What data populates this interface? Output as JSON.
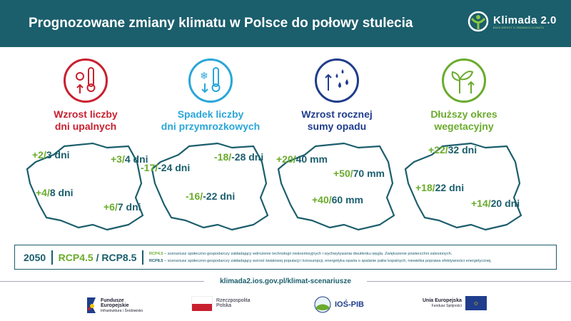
{
  "header": {
    "title": "Prognozowane zmiany klimatu w Polsce do połowy stulecia",
    "logo_name": "Klimada 2.0",
    "logo_sub": "BAZA WIEDZY O ZMIANACH KLIMATU"
  },
  "columns": [
    {
      "title": [
        "Wzrost liczby",
        "dni upalnych"
      ],
      "color": "#c8202f",
      "icon": "thermometer-sun-icon",
      "values": [
        [
          "+2/",
          "3 dni"
        ],
        [
          "+3/",
          "4 dni"
        ],
        [
          "+4/",
          "8 dni"
        ],
        [
          "+6/",
          "7 dni"
        ]
      ]
    },
    {
      "title": [
        "Spadek liczby",
        "dni przymrozkowych"
      ],
      "color": "#29a6d9",
      "icon": "thermometer-snow-icon",
      "values": [
        [
          "-18/",
          "-28 dni"
        ],
        [
          "-17/",
          "-24 dni"
        ],
        [
          "-16/",
          "-22 dni"
        ]
      ]
    },
    {
      "title": [
        "Wzrost rocznej",
        "sumy opadu"
      ],
      "color": "#1f3d8c",
      "icon": "rain-icon",
      "values": [
        [
          "+20/",
          "40 mm"
        ],
        [
          "+50/",
          "70 mm"
        ],
        [
          "+40/",
          "60 mm"
        ]
      ]
    },
    {
      "title": [
        "Dłuższy okres",
        "wegetacyjny"
      ],
      "color": "#6aab2c",
      "icon": "plant-icon",
      "values": [
        [
          "+22/",
          "32 dni"
        ],
        [
          "+18/",
          "22 dni"
        ],
        [
          "+14/",
          "20 dni"
        ]
      ]
    }
  ],
  "legend": {
    "year": "2050",
    "rcp45": "RCP4.5",
    "slash": " / ",
    "rcp85": "RCP8.5",
    "note45_label": "RCP4.5",
    "note45": " – scenariusz społeczno-gospodarczy zakładający wdrożenie technologii niskoemisyjnych i wychwytywania dwutlenku węgla. Zwiększenie powierzchni zalesionych.",
    "note85_label": "RCP8.5",
    "note85": " – scenariusz społeczno-gospodarczy zakładający wzrost światowej populacji i konsumpcji, energetyka oparta o spalanie paliw kopalnych, niewielka poprawa efektywności energetycznej."
  },
  "url": "klimada2.ios.gov.pl/klimat-scenariusze",
  "logos": {
    "fe": [
      "Fundusze",
      "Europejskie",
      "Infrastruktura i Środowisko"
    ],
    "rp": [
      "Rzeczpospolita",
      "Polska"
    ],
    "ios": "IOŚ-PIB",
    "ue": [
      "Unia Europejska",
      "Fundusz Spójności"
    ]
  }
}
